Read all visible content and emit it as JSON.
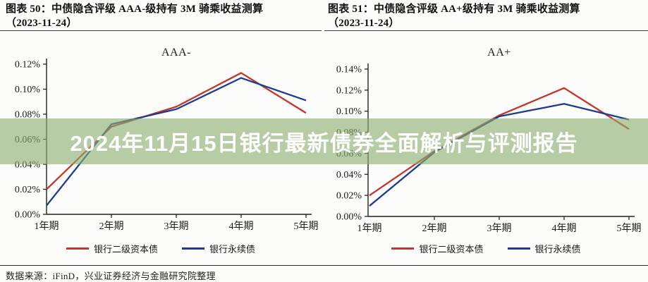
{
  "page": {
    "background": "#fcfcfa",
    "source_note": "数据来源：iFinD，兴业证券经济与金融研究院整理"
  },
  "banner": {
    "text": "2024年11月15日银行最新债券全面解析与评测报告",
    "overlay_color": "138,175,112",
    "overlay_alpha": 0.62,
    "text_color": "#ffffff"
  },
  "figures": [
    {
      "label": "图表 50：中债隐含评级 AAA-级持有 3M 骑乘收益测算",
      "date_line": "（2023-11-24）"
    },
    {
      "label": "图表 51：中债隐含评级 AA+级持有 3M 骑乘收益测算",
      "date_line": "（2023-11-24）"
    }
  ],
  "chart_data": [
    {
      "type": "line",
      "title": "AAA-",
      "categories": [
        "1年期",
        "2年期",
        "3年期",
        "4年期",
        "5年期"
      ],
      "series": [
        {
          "name": "银行二级资本债",
          "color": "#c2362e",
          "values": [
            0.02,
            0.07,
            0.086,
            0.113,
            0.081
          ]
        },
        {
          "name": "银行永续债",
          "color": "#1c3d8f",
          "values": [
            0.007,
            0.072,
            0.084,
            0.109,
            0.091
          ]
        }
      ],
      "xlabel": "",
      "ylabel": "",
      "ylim": [
        0,
        0.12
      ],
      "ytick_step": 0.02,
      "ytick_format": "0.00%",
      "unit": "percent",
      "grid": false,
      "legend_position": "bottom"
    },
    {
      "type": "line",
      "title": "AA+",
      "categories": [
        "1年期",
        "2年期",
        "3年期",
        "4年期",
        "5年期"
      ],
      "series": [
        {
          "name": "银行二级资本债",
          "color": "#c2362e",
          "values": [
            0.02,
            0.062,
            0.096,
            0.122,
            0.083
          ]
        },
        {
          "name": "银行永续债",
          "color": "#1c3d8f",
          "values": [
            0.01,
            0.061,
            0.095,
            0.107,
            0.092
          ]
        }
      ],
      "xlabel": "",
      "ylabel": "",
      "ylim": [
        0,
        0.14
      ],
      "ytick_step": 0.02,
      "ytick_format": "0.00%",
      "unit": "percent",
      "grid": false,
      "legend_position": "bottom"
    }
  ]
}
